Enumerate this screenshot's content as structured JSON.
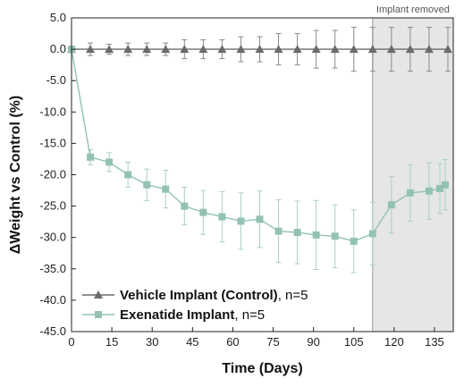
{
  "chart_data": {
    "type": "line",
    "title": "",
    "xlabel": "Time (Days)",
    "ylabel": "ΔWeight vs Control (%)",
    "xlim": [
      0,
      142
    ],
    "ylim": [
      -45,
      5
    ],
    "x_ticks": [
      0,
      15,
      30,
      45,
      60,
      75,
      90,
      105,
      120,
      135
    ],
    "y_ticks": [
      5.0,
      0.0,
      -5.0,
      -10.0,
      -15.0,
      -20.0,
      -25.0,
      -30.0,
      -35.0,
      -40.0,
      -45.0
    ],
    "y_tick_labels": [
      "5.0",
      "0.0",
      "-5.0",
      "-10.0",
      "-15.0",
      "-20.0",
      "-25.0",
      "-30.0",
      "-35.0",
      "-40.0",
      "-45.0"
    ],
    "grid": false,
    "legend_position": "bottom-left",
    "shaded_region": {
      "x_start": 112,
      "x_end": 142,
      "label": "Implant removed",
      "color": "#e6e6e6"
    },
    "series": [
      {
        "name": "Vehicle Implant (Control)",
        "legend_bold": "Vehicle Implant (Control)",
        "legend_suffix": ", n=5",
        "color": "#6b6b6b",
        "marker": "triangle",
        "x": [
          0,
          7,
          14,
          21,
          28,
          35,
          42,
          49,
          56,
          63,
          70,
          77,
          84,
          91,
          98,
          105,
          112,
          119,
          126,
          133,
          140
        ],
        "y": [
          0.0,
          0.0,
          0.0,
          0.0,
          0.0,
          0.0,
          0.0,
          0.0,
          0.0,
          0.0,
          0.0,
          0.0,
          0.0,
          0.0,
          0.0,
          0.0,
          0.0,
          0.0,
          0.0,
          0.0,
          0.0
        ],
        "err": [
          0.5,
          1.0,
          0.8,
          1.0,
          1.0,
          1.0,
          1.5,
          1.5,
          1.5,
          2.0,
          2.0,
          2.5,
          2.5,
          3.0,
          3.0,
          3.5,
          3.5,
          3.5,
          3.5,
          3.5,
          3.5
        ]
      },
      {
        "name": "Exenatide Implant",
        "legend_bold": "Exenatide Implant",
        "legend_suffix": ", n=5",
        "color": "#93c2b3",
        "marker": "square",
        "x": [
          0,
          7,
          14,
          21,
          28,
          35,
          42,
          49,
          56,
          63,
          70,
          77,
          84,
          91,
          98,
          105,
          112,
          119,
          126,
          133,
          137,
          139
        ],
        "y": [
          0.0,
          -17.2,
          -18.0,
          -20.0,
          -21.6,
          -22.3,
          -25.0,
          -26.0,
          -26.7,
          -27.4,
          -27.1,
          -29.0,
          -29.2,
          -29.6,
          -29.8,
          -30.6,
          -29.4,
          -24.8,
          -22.9,
          -22.6,
          -22.2,
          -21.6
        ],
        "err": [
          0.0,
          1.2,
          1.5,
          2.0,
          2.5,
          3.0,
          3.0,
          3.5,
          4.0,
          4.5,
          4.5,
          5.0,
          5.0,
          5.5,
          5.0,
          5.0,
          5.0,
          4.5,
          4.5,
          4.5,
          4.0,
          4.0
        ]
      }
    ]
  }
}
